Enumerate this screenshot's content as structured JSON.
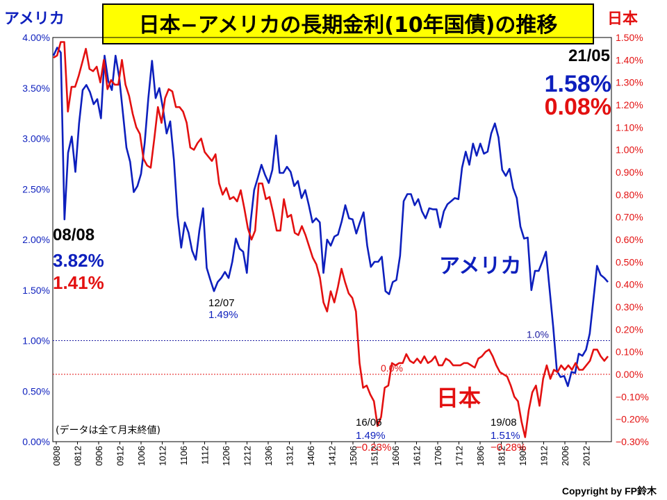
{
  "chart_data": {
    "type": "line",
    "title": "日本−アメリカの長期金利(10年国債)の推移",
    "left_axis_label": "アメリカ",
    "right_axis_label": "日本",
    "y_left": {
      "min": 0,
      "max": 4.0,
      "step": 0.5,
      "format": "0.00%"
    },
    "y_right": {
      "min": -0.3,
      "max": 1.5,
      "step": 0.1,
      "format": "0.00%"
    },
    "x_tick_labels": [
      "0808",
      "0812",
      "0906",
      "0912",
      "1006",
      "1012",
      "1106",
      "1112",
      "1206",
      "1212",
      "1306",
      "1312",
      "1406",
      "1412",
      "1506",
      "1512",
      "1606",
      "1612",
      "1706",
      "1712",
      "1806",
      "1812",
      "1906",
      "1912",
      "2006",
      "2012"
    ],
    "series": [
      {
        "name": "アメリカ",
        "axis": "left",
        "color": "#0d1fbd",
        "values": [
          3.82,
          3.9,
          3.85,
          2.2,
          2.86,
          3.02,
          2.67,
          3.15,
          3.48,
          3.53,
          3.46,
          3.34,
          3.39,
          3.2,
          3.82,
          3.57,
          3.48,
          3.82,
          3.61,
          3.26,
          2.91,
          2.77,
          2.47,
          2.53,
          2.65,
          2.96,
          3.4,
          3.77,
          3.4,
          3.5,
          3.3,
          3.05,
          3.17,
          2.79,
          2.24,
          1.92,
          2.17,
          2.07,
          1.89,
          1.8,
          2.09,
          2.31,
          1.72,
          1.6,
          1.49,
          1.58,
          1.62,
          1.68,
          1.62,
          1.78,
          2.01,
          1.91,
          1.88,
          1.67,
          2.16,
          2.49,
          2.61,
          2.74,
          2.64,
          2.56,
          2.69,
          3.03,
          2.66,
          2.66,
          2.72,
          2.67,
          2.53,
          2.58,
          2.41,
          2.49,
          2.34,
          2.17,
          2.21,
          2.17,
          1.67,
          2.0,
          1.94,
          2.03,
          2.05,
          2.18,
          2.34,
          2.21,
          2.2,
          2.06,
          2.17,
          2.27,
          1.94,
          1.73,
          1.78,
          1.78,
          1.83,
          1.49,
          1.46,
          1.58,
          1.6,
          1.84,
          2.38,
          2.45,
          2.45,
          2.34,
          2.4,
          2.28,
          2.21,
          2.31,
          2.3,
          2.3,
          2.12,
          2.28,
          2.35,
          2.38,
          2.41,
          2.4,
          2.71,
          2.87,
          2.74,
          2.95,
          2.83,
          2.95,
          2.85,
          2.87,
          3.05,
          3.15,
          3.01,
          2.69,
          2.63,
          2.7,
          2.51,
          2.41,
          2.13,
          2.01,
          2.02,
          1.5,
          1.69,
          1.69,
          1.78,
          1.88,
          1.51,
          1.13,
          0.7,
          0.64,
          0.65,
          0.55,
          0.69,
          0.68,
          0.87,
          0.85,
          0.91,
          1.07,
          1.4,
          1.74,
          1.65,
          1.62,
          1.58
        ]
      },
      {
        "name": "日本",
        "axis": "right",
        "color": "#e31010",
        "values": [
          1.41,
          1.42,
          1.48,
          1.48,
          1.17,
          1.28,
          1.28,
          1.33,
          1.39,
          1.45,
          1.36,
          1.35,
          1.37,
          1.3,
          1.4,
          1.27,
          1.31,
          1.29,
          1.29,
          1.4,
          1.29,
          1.24,
          1.16,
          1.1,
          1.07,
          0.96,
          0.93,
          0.92,
          1.05,
          1.19,
          1.12,
          1.23,
          1.27,
          1.26,
          1.19,
          1.19,
          1.17,
          1.12,
          1.01,
          1.0,
          1.03,
          1.05,
          0.99,
          0.97,
          0.95,
          0.98,
          0.85,
          0.8,
          0.83,
          0.78,
          0.79,
          0.77,
          0.82,
          0.74,
          0.65,
          0.6,
          0.64,
          0.85,
          0.85,
          0.78,
          0.79,
          0.72,
          0.64,
          0.64,
          0.78,
          0.7,
          0.71,
          0.63,
          0.62,
          0.66,
          0.62,
          0.57,
          0.52,
          0.49,
          0.43,
          0.32,
          0.28,
          0.37,
          0.32,
          0.39,
          0.47,
          0.41,
          0.36,
          0.34,
          0.28,
          0.05,
          -0.06,
          -0.05,
          -0.09,
          -0.12,
          -0.23,
          -0.19,
          -0.06,
          -0.05,
          0.05,
          0.04,
          0.05,
          0.05,
          0.09,
          0.06,
          0.05,
          0.07,
          0.05,
          0.08,
          0.05,
          0.06,
          0.08,
          0.04,
          0.04,
          0.07,
          0.06,
          0.04,
          0.04,
          0.04,
          0.05,
          0.05,
          0.04,
          0.03,
          0.07,
          0.08,
          0.1,
          0.11,
          0.08,
          0.04,
          0.01,
          0.0,
          -0.01,
          -0.05,
          -0.1,
          -0.12,
          -0.21,
          -0.28,
          -0.16,
          -0.08,
          -0.05,
          -0.14,
          -0.02,
          0.04,
          -0.02,
          0.02,
          0.01,
          0.04,
          0.02,
          0.04,
          0.02,
          0.05,
          0.02,
          0.02,
          0.04,
          0.06,
          0.11,
          0.11,
          0.08,
          0.06,
          0.08
        ]
      }
    ],
    "reference_lines": [
      {
        "axis": "left",
        "value": 1.0,
        "label": "1.0%",
        "color": "#1a1aa0"
      },
      {
        "axis": "right",
        "value": 0.0,
        "label": "0.0%",
        "color": "#e31010"
      }
    ],
    "annotations": {
      "start_date": "08/08",
      "start_us": "3.82%",
      "start_jp": "1.41%",
      "end_date": "21/05",
      "end_us": "1.58%",
      "end_jp": "0.08%",
      "us_series_label": "アメリカ",
      "jp_series_label": "日本",
      "low_1_date": "12/07",
      "low_1_us": "1.49%",
      "low_2_date": "16/06",
      "low_2_us": "1.49%",
      "low_2_jp": "−0.23%",
      "low_3_date": "19/08",
      "low_3_us": "1.51%",
      "low_3_jp": "−0.28%",
      "note": "(データは全て月末終値)"
    },
    "copyright": "Copyright by FP鈴木",
    "colors": {
      "us": "#0d1fbd",
      "jp": "#e31010",
      "title_bg": "#ffff00"
    }
  }
}
